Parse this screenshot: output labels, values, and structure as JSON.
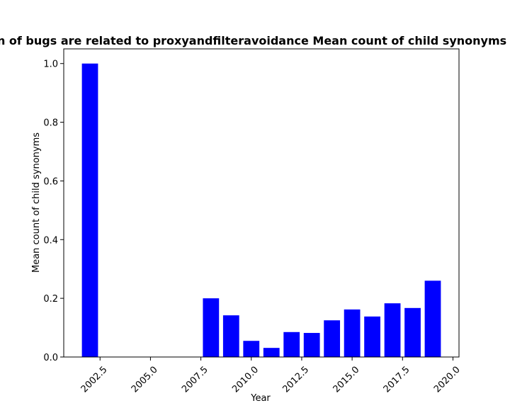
{
  "chart_data": {
    "type": "bar",
    "title": "Proportion of bugs are related to proxyandfilteravoidance Mean count of child synonyms in privacy",
    "xlabel": "Year",
    "ylabel": "Mean count of child synonyms",
    "x": [
      2002,
      2008,
      2009,
      2010,
      2011,
      2012,
      2013,
      2014,
      2015,
      2016,
      2017,
      2018,
      2019
    ],
    "values": [
      1.0,
      0.2,
      0.142,
      0.055,
      0.031,
      0.085,
      0.082,
      0.125,
      0.162,
      0.138,
      0.183,
      0.167,
      0.26
    ],
    "xlim": [
      2000.7,
      2020.3
    ],
    "ylim": [
      0,
      1.05
    ],
    "xticks": [
      "2002.5",
      "2005.0",
      "2007.5",
      "2010.0",
      "2012.5",
      "2015.0",
      "2017.5",
      "2020.0"
    ],
    "yticks": [
      "0.0",
      "0.2",
      "0.4",
      "0.6",
      "0.8",
      "1.0"
    ],
    "bar_color": "#0000ff",
    "grid": false,
    "legend": "none"
  }
}
